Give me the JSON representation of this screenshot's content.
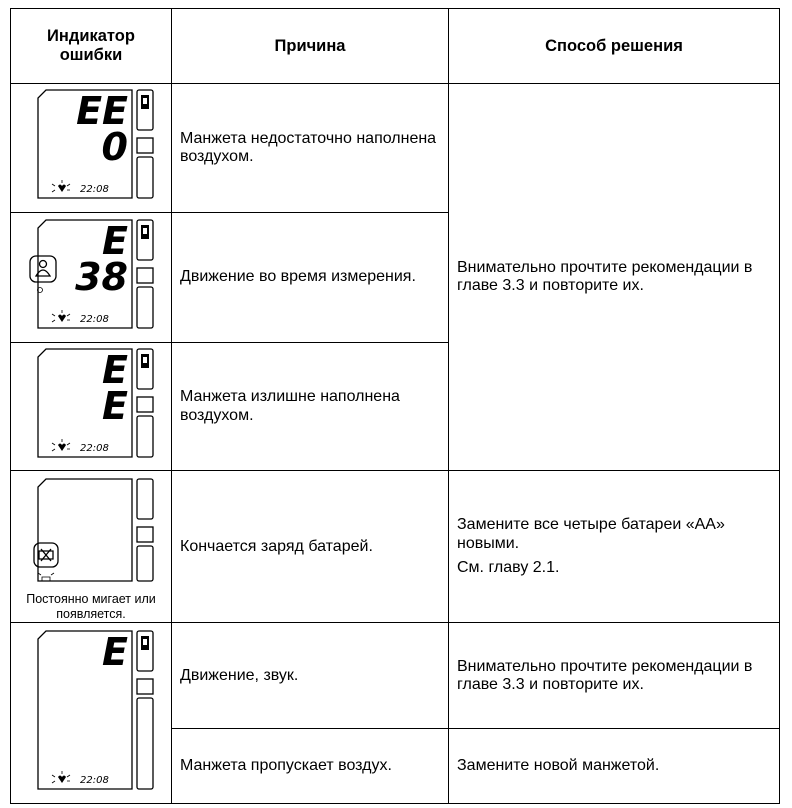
{
  "header": {
    "indicator": "Индикатор ошибки",
    "cause": "Причина",
    "solution": "Способ решения"
  },
  "rows": [
    {
      "display": [
        "EE",
        "0"
      ],
      "time": "22:08",
      "cause": "Манжета недостаточно наполнена воздухом.",
      "solution": "Внимательно прочтите рекомендации в главе 3.3 и повторите их."
    },
    {
      "display": [
        "E",
        "38"
      ],
      "time": "22:08",
      "cause": "Движение во время измерения."
    },
    {
      "display": [
        "E",
        "E"
      ],
      "time": "22:08",
      "cause": "Манжета излишне наполнена воздухом."
    },
    {
      "caption": "Постоянно мигает или появляется.",
      "cause": "Кончается заряд батарей.",
      "solution": [
        "Замените все четыре батареи «АА» новыми.",
        "См. главу 2.1."
      ]
    },
    {
      "display": [
        "E"
      ],
      "time": "22:08",
      "cause": "Движение, звук.",
      "solution": "Внимательно прочтите рекомендации в главе 3.3 и повторите их."
    },
    {
      "cause": "Манжета пропускает воздух.",
      "solution": "Замените новой манжетой."
    }
  ]
}
